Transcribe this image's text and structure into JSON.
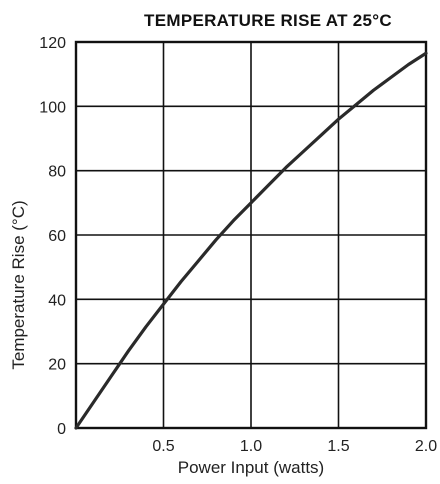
{
  "chart_data": {
    "type": "line",
    "title": "TEMPERATURE RISE AT 25°C",
    "xlabel": "Power Input (watts)",
    "ylabel": "Temperature Rise (°C)",
    "xlim": [
      0,
      2.0
    ],
    "ylim": [
      0,
      120
    ],
    "x_ticks": [
      "0.5",
      "1.0",
      "1.5",
      "2.0"
    ],
    "x_tick_values": [
      0.5,
      1.0,
      1.5,
      2.0
    ],
    "y_ticks": [
      "0",
      "20",
      "40",
      "60",
      "80",
      "100",
      "120"
    ],
    "y_tick_values": [
      0,
      20,
      40,
      60,
      80,
      100,
      120
    ],
    "grid": true,
    "legend": "none",
    "series": [
      {
        "color": "#2a2a2a",
        "x": [
          0,
          0.1,
          0.2,
          0.25,
          0.3,
          0.4,
          0.5,
          0.6,
          0.7,
          0.8,
          0.9,
          1.0,
          1.1,
          1.2,
          1.3,
          1.4,
          1.5,
          1.6,
          1.7,
          1.8,
          1.9,
          2.0
        ],
        "y": [
          0,
          8,
          16,
          20,
          24,
          31.5,
          38.5,
          45.5,
          52,
          58.5,
          64.5,
          70,
          75.5,
          81,
          86,
          91,
          96,
          100.5,
          105,
          109,
          113,
          116.5
        ]
      }
    ]
  }
}
